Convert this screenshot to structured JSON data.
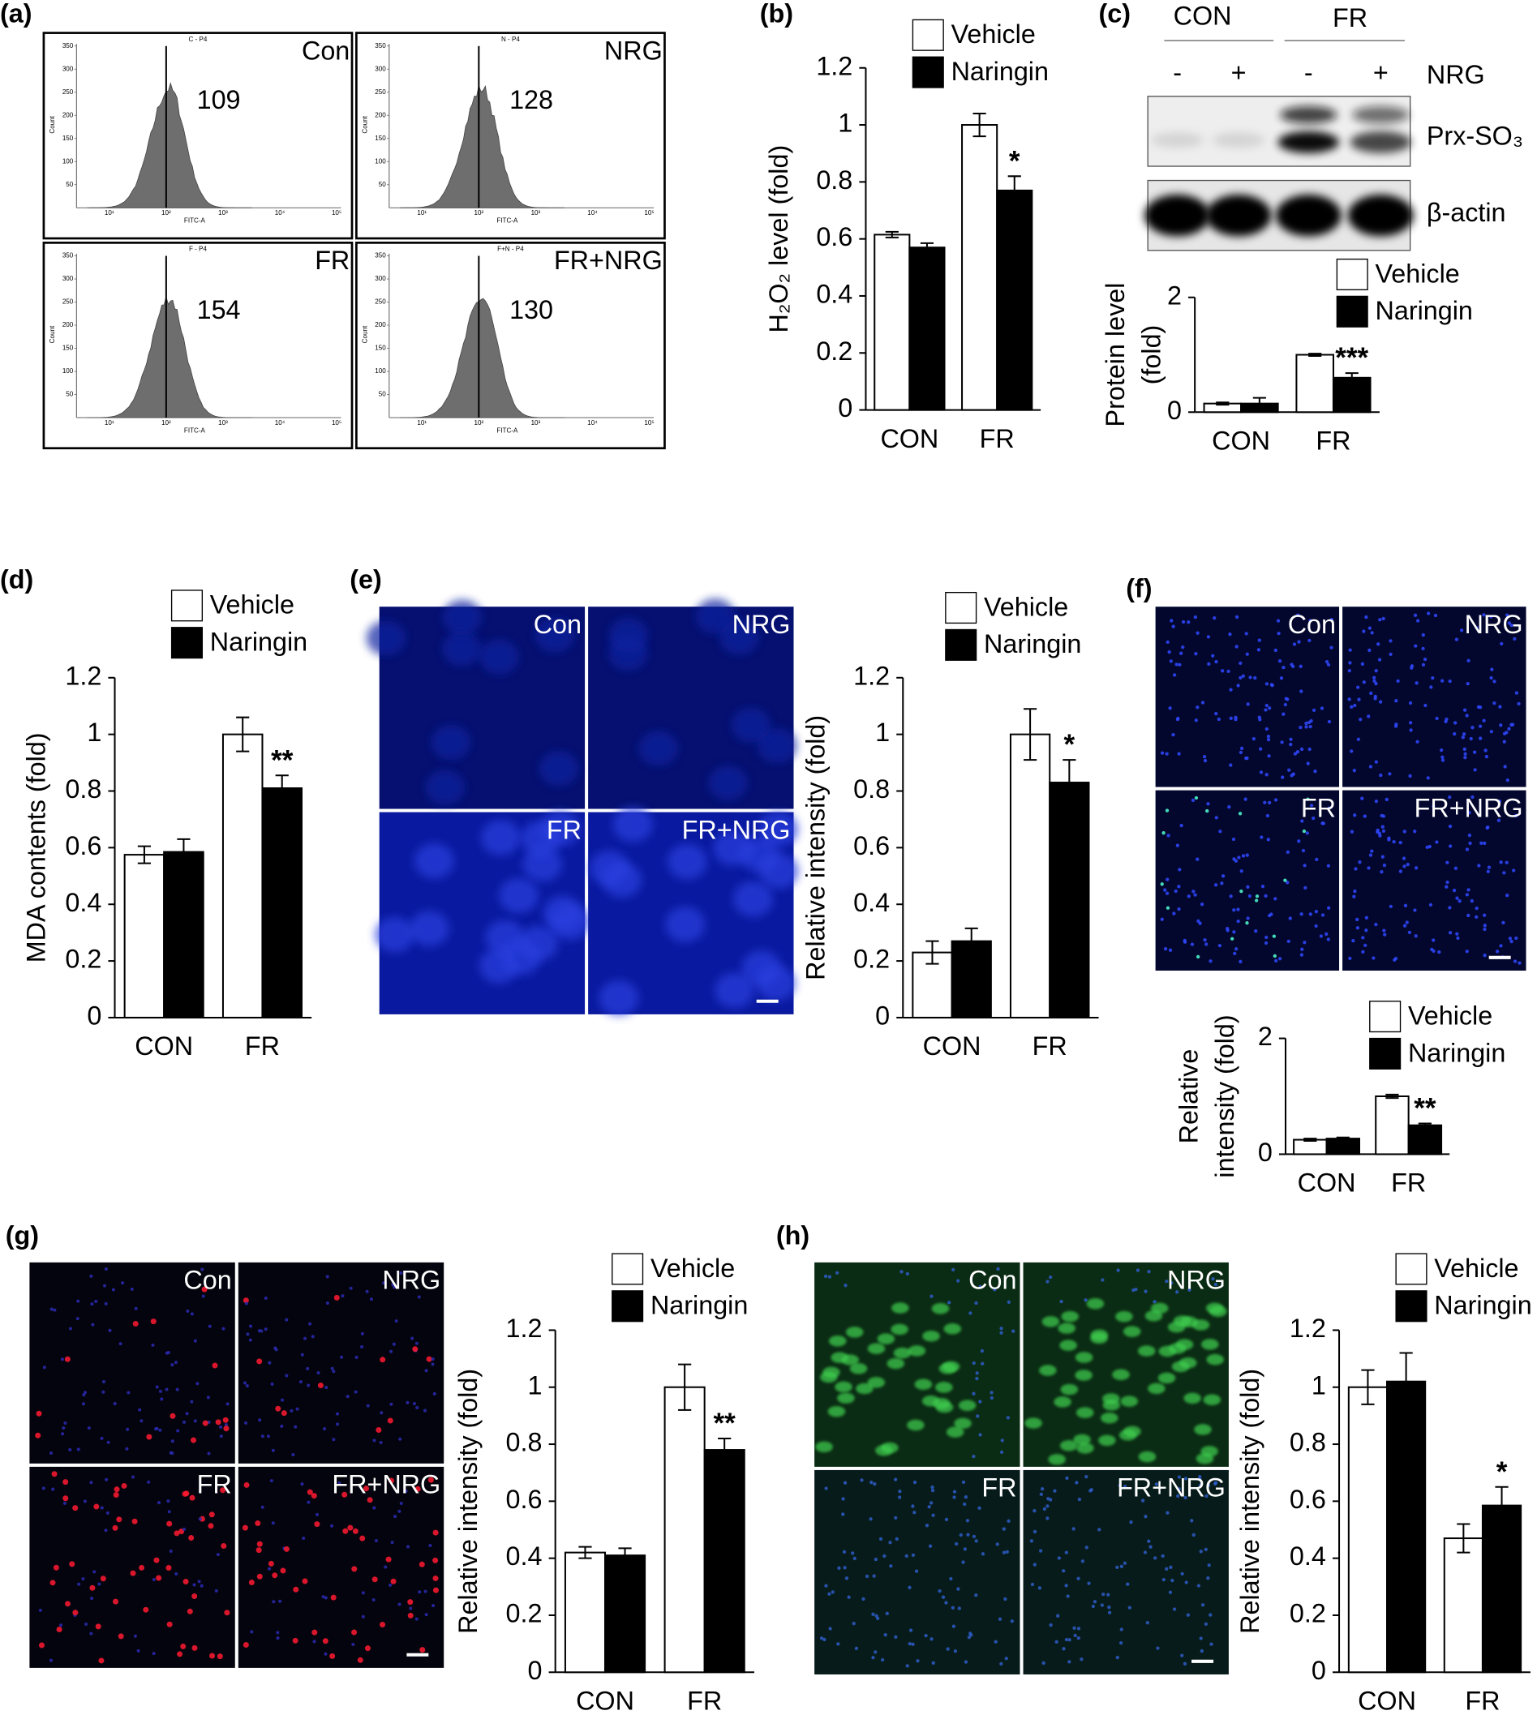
{
  "panel_labels": [
    "(a)",
    "(b)",
    "(c)",
    "(d)",
    "(e)",
    "(f)",
    "(g)",
    "(h)"
  ],
  "flow_cytometry": {
    "x_axis_label": "FITC-A",
    "y_axis_label": "Count",
    "xtick_labels": [
      "10¹",
      "10²",
      "10³",
      "10⁴",
      "10⁵"
    ],
    "yticks": [
      50,
      100,
      150,
      200,
      250,
      300,
      350
    ],
    "panels": [
      {
        "gate": "C - P4",
        "label": "Con",
        "value": 109
      },
      {
        "gate": "N - P4",
        "label": "NRG",
        "value": 128
      },
      {
        "gate": "F - P4",
        "label": "FR",
        "value": 154
      },
      {
        "gate": "F+N - P4",
        "label": "FR+NRG",
        "value": 130
      }
    ]
  },
  "western_blot": {
    "groups": [
      "CON",
      "FR"
    ],
    "treatment_label": "NRG",
    "signs": [
      "-",
      "+",
      "-",
      "+"
    ],
    "bands": [
      "Prx-SO₃",
      "β-actin"
    ]
  },
  "micrographs": [
    {
      "labels": [
        "Con",
        "NRG",
        "FR",
        "FR+NRG"
      ]
    },
    {
      "labels": [
        "Con",
        "NRG",
        "FR",
        "FR+NRG"
      ]
    },
    {
      "labels": [
        "Con",
        "NRG",
        "FR",
        "FR+NRG"
      ]
    },
    {
      "labels": [
        "Con",
        "NRG",
        "FR",
        "FR+NRG"
      ]
    }
  ],
  "chart_data": [
    {
      "type": "bar",
      "ylabel": [
        "H₂O₂ level (fold)"
      ],
      "categories": [
        "CON",
        "FR"
      ],
      "ylim": [
        0,
        1.2
      ],
      "yticks": [
        0,
        0.2,
        0.4,
        0.6,
        0.8,
        1,
        1.2
      ],
      "series": [
        {
          "name": "Vehicle",
          "color": "#ffffff",
          "values": [
            0.615,
            1.0
          ],
          "errors": [
            0.01,
            0.04
          ]
        },
        {
          "name": "Naringin",
          "color": "#000000",
          "values": [
            0.57,
            0.77
          ],
          "errors": [
            0.015,
            0.05
          ],
          "significance": [
            null,
            "*"
          ]
        }
      ]
    },
    {
      "type": "bar",
      "ylabel": [
        "Protein level",
        "(fold)"
      ],
      "categories": [
        "CON",
        "FR"
      ],
      "ylim": [
        0,
        2
      ],
      "yticks": [
        0,
        2
      ],
      "series": [
        {
          "name": "Vehicle",
          "color": "#ffffff",
          "values": [
            0.15,
            1.0
          ],
          "errors": [
            0.02,
            0.02
          ]
        },
        {
          "name": "Naringin",
          "color": "#000000",
          "values": [
            0.15,
            0.6
          ],
          "errors": [
            0.1,
            0.08
          ],
          "significance": [
            null,
            "***"
          ]
        }
      ]
    },
    {
      "type": "bar",
      "ylabel": [
        "MDA contents (fold)"
      ],
      "categories": [
        "CON",
        "FR"
      ],
      "ylim": [
        0,
        1.2
      ],
      "yticks": [
        0,
        0.2,
        0.4,
        0.6,
        0.8,
        1,
        1.2
      ],
      "series": [
        {
          "name": "Vehicle",
          "color": "#ffffff",
          "values": [
            0.575,
            1.0
          ],
          "errors": [
            0.03,
            0.06
          ]
        },
        {
          "name": "Naringin",
          "color": "#000000",
          "values": [
            0.585,
            0.81
          ],
          "errors": [
            0.045,
            0.045
          ],
          "significance": [
            null,
            "**"
          ]
        }
      ]
    },
    {
      "type": "bar",
      "ylabel": [
        "Relative intensity (fold)"
      ],
      "categories": [
        "CON",
        "FR"
      ],
      "ylim": [
        0,
        1.2
      ],
      "yticks": [
        0,
        0.2,
        0.4,
        0.6,
        0.8,
        1,
        1.2
      ],
      "series": [
        {
          "name": "Vehicle",
          "color": "#ffffff",
          "values": [
            0.23,
            1.0
          ],
          "errors": [
            0.04,
            0.09
          ]
        },
        {
          "name": "Naringin",
          "color": "#000000",
          "values": [
            0.27,
            0.83
          ],
          "errors": [
            0.045,
            0.08
          ],
          "significance": [
            null,
            "*"
          ]
        }
      ]
    },
    {
      "type": "bar",
      "ylabel": [
        "Relative",
        "intensity (fold)"
      ],
      "categories": [
        "CON",
        "FR"
      ],
      "ylim": [
        0,
        2
      ],
      "yticks": [
        0,
        2
      ],
      "series": [
        {
          "name": "Vehicle",
          "color": "#ffffff",
          "values": [
            0.25,
            1.0
          ],
          "errors": [
            0.02,
            0.03
          ]
        },
        {
          "name": "Naringin",
          "color": "#000000",
          "values": [
            0.27,
            0.5
          ],
          "errors": [
            0.02,
            0.03
          ],
          "significance": [
            null,
            "**"
          ]
        }
      ]
    },
    {
      "type": "bar",
      "ylabel": [
        "Relative intensity (fold)"
      ],
      "categories": [
        "CON",
        "FR"
      ],
      "ylim": [
        0,
        1.2
      ],
      "yticks": [
        0,
        0.2,
        0.4,
        0.6,
        0.8,
        1,
        1.2
      ],
      "series": [
        {
          "name": "Vehicle",
          "color": "#ffffff",
          "values": [
            0.42,
            1.0
          ],
          "errors": [
            0.02,
            0.08
          ]
        },
        {
          "name": "Naringin",
          "color": "#000000",
          "values": [
            0.41,
            0.78
          ],
          "errors": [
            0.025,
            0.04
          ],
          "significance": [
            null,
            "**"
          ]
        }
      ]
    },
    {
      "type": "bar",
      "ylabel": [
        "Relative intensity (fold)"
      ],
      "categories": [
        "CON",
        "FR"
      ],
      "ylim": [
        0,
        1.2
      ],
      "yticks": [
        0,
        0.2,
        0.4,
        0.6,
        0.8,
        1,
        1.2
      ],
      "series": [
        {
          "name": "Vehicle",
          "color": "#ffffff",
          "values": [
            1.0,
            0.47
          ],
          "errors": [
            0.06,
            0.05
          ]
        },
        {
          "name": "Naringin",
          "color": "#000000",
          "values": [
            1.02,
            0.585
          ],
          "errors": [
            0.1,
            0.065
          ],
          "significance": [
            null,
            "*"
          ]
        }
      ]
    }
  ]
}
